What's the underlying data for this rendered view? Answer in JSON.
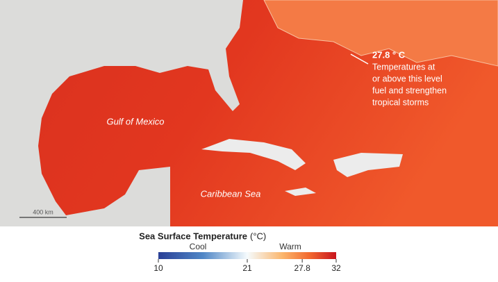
{
  "map": {
    "labels": [
      "Gulf of Mexico",
      "Caribbean Sea"
    ],
    "annotation": {
      "value_text": "27.8 ° C",
      "lines": [
        "Temperatures at",
        "or above this level",
        "fuel and strengthen",
        "tropical storms"
      ]
    },
    "scale_bar": "400 km"
  },
  "legend": {
    "title": "Sea Surface Temperature",
    "unit": "(°C)",
    "low": "Cool",
    "high": "Warm",
    "range": [
      10,
      32
    ],
    "ticks": [
      10,
      21,
      27.8,
      32
    ]
  }
}
